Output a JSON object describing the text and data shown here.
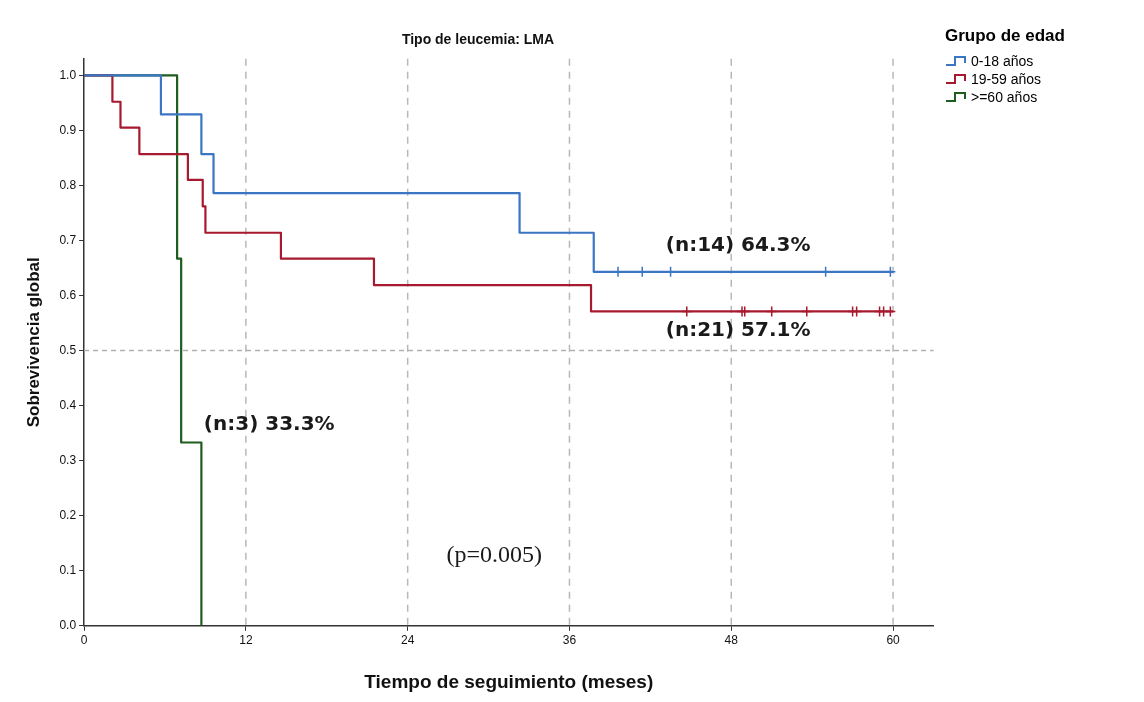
{
  "chart_data": {
    "type": "step",
    "title": "Tipo de leucemia: LMA",
    "xlabel": "Tiempo de seguimiento (meses)",
    "ylabel": "Sobrevivencia global",
    "legend_title": "Grupo de edad",
    "legend": "top right",
    "grid": "x",
    "marker": "none",
    "xlim": [
      0,
      63
    ],
    "xticks": [
      0,
      12,
      24,
      36,
      48,
      60
    ],
    "ylim": [
      0,
      1.03
    ],
    "yticks": [
      {
        "value": 0,
        "label": "0.0"
      },
      {
        "value": 0.1,
        "label": "0.1"
      },
      {
        "value": 0.2,
        "label": "0.2"
      },
      {
        "value": 0.3,
        "label": "0.3"
      },
      {
        "value": 0.4,
        "label": "0.4"
      },
      {
        "value": 0.5,
        "label": "0.5"
      },
      {
        "value": 0.6,
        "label": "0.6"
      },
      {
        "value": 0.7,
        "label": "0.7"
      },
      {
        "value": 0.8,
        "label": "0.8"
      },
      {
        "value": 0.9,
        "label": "0.9"
      },
      {
        "value": 1,
        "label": "1.0"
      }
    ],
    "ref_lines": [
      {
        "axis": "y",
        "value": 0.5,
        "color": "#b0b0b0",
        "line_style": "dashed"
      }
    ],
    "series": [
      {
        "name": "0-18 años",
        "color": "#3a76c4",
        "x": [
          0,
          5.7,
          8.7,
          9.6,
          32.3,
          37.8,
          60
        ],
        "values": [
          1,
          0.929,
          0.857,
          0.786,
          0.714,
          0.643,
          0.643
        ]
      },
      {
        "name": "19-59 años",
        "color": "#a6192e",
        "x": [
          0,
          2.1,
          2.7,
          4.1,
          7.7,
          8.8,
          9.0,
          14.6,
          21.5,
          37.6,
          60
        ],
        "values": [
          1,
          0.952,
          0.905,
          0.857,
          0.81,
          0.762,
          0.714,
          0.667,
          0.619,
          0.571,
          0.571
        ]
      },
      {
        "name": ">=60 años",
        "color": "#1f5c1f",
        "x": [
          0,
          6.9,
          7.2,
          8.7
        ],
        "values": [
          1,
          0.667,
          0.333,
          0
        ]
      },
      {
        "type": "scatter",
        "marker": "cross",
        "color": "#3a76c4",
        "x": [
          39.6,
          41.4,
          43.5,
          55,
          59.8
        ],
        "values": [
          0.643,
          0.643,
          0.643,
          0.643,
          0.643
        ]
      },
      {
        "type": "scatter",
        "marker": "cross",
        "color": "#a6192e",
        "x": [
          44.7,
          48.8,
          49.0,
          51.0,
          53.6,
          57.0,
          57.3,
          59.0,
          59.3,
          59.8
        ],
        "values": [
          0.571,
          0.571,
          0.571,
          0.571,
          0.571,
          0.571,
          0.571,
          0.571,
          0.571,
          0.571
        ]
      }
    ],
    "annotations": [
      "(n:14) 64.3%",
      "(n:21) 57.1%",
      "(n:3) 33.3%",
      "(p=0.005)"
    ]
  }
}
